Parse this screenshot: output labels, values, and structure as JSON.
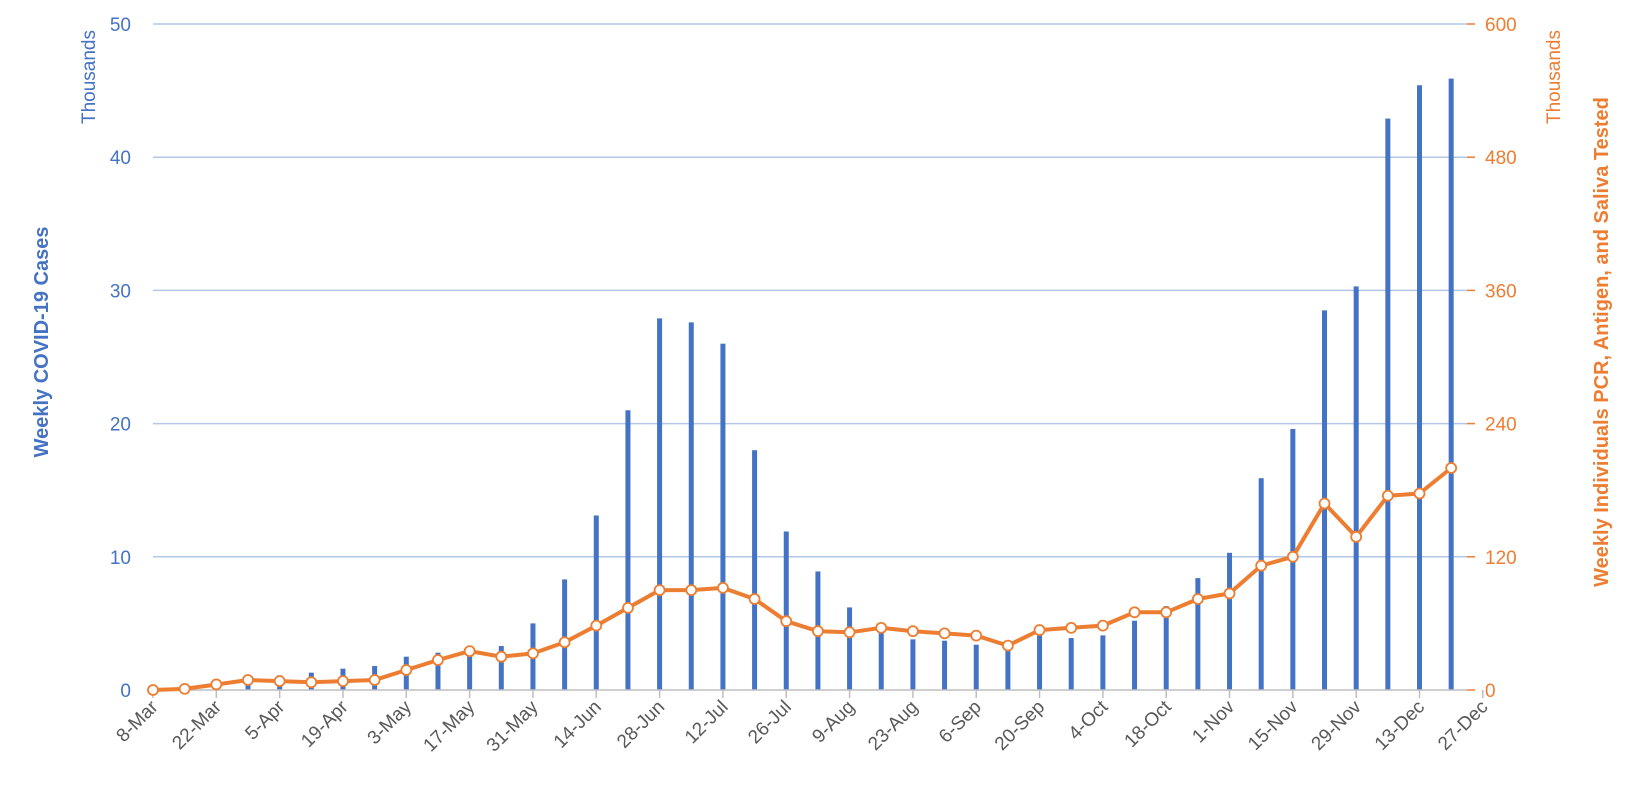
{
  "chart_data": {
    "type": "bar",
    "title": "",
    "grid": true,
    "legend": "none",
    "colors": {
      "cases": "#4472C4",
      "tests": "#ED7D31",
      "grid": "#B4C7E7"
    },
    "y_left": {
      "label": "Weekly COVID-19 Cases",
      "unit": "Thousands",
      "range": [
        0,
        50
      ],
      "ticks": [
        "0",
        "10",
        "20",
        "30",
        "40",
        "50"
      ]
    },
    "y_right": {
      "label": "Weekly Individuals PCR, Antigen, and Saliva Tested",
      "unit": "Thousands",
      "range": [
        0,
        600
      ],
      "ticks": [
        "0",
        "120",
        "240",
        "360",
        "480",
        "600"
      ]
    },
    "x_tick_labels": [
      "8-Mar",
      "22-Mar",
      "5-Apr",
      "19-Apr",
      "3-May",
      "17-May",
      "31-May",
      "14-Jun",
      "28-Jun",
      "12-Jul",
      "26-Jul",
      "9-Aug",
      "23-Aug",
      "6-Sep",
      "20-Sep",
      "4-Oct",
      "18-Oct",
      "1-Nov",
      "15-Nov",
      "29-Nov",
      "13-Dec",
      "27-Dec"
    ],
    "x": [
      "8-Mar",
      "15-Mar",
      "22-Mar",
      "29-Mar",
      "5-Apr",
      "12-Apr",
      "19-Apr",
      "26-Apr",
      "3-May",
      "10-May",
      "17-May",
      "24-May",
      "31-May",
      "7-Jun",
      "14-Jun",
      "21-Jun",
      "28-Jun",
      "5-Jul",
      "12-Jul",
      "19-Jul",
      "26-Jul",
      "2-Aug",
      "9-Aug",
      "16-Aug",
      "23-Aug",
      "30-Aug",
      "6-Sep",
      "13-Sep",
      "20-Sep",
      "27-Sep",
      "4-Oct",
      "11-Oct",
      "18-Oct",
      "25-Oct",
      "1-Nov",
      "8-Nov",
      "15-Nov",
      "22-Nov",
      "29-Nov",
      "6-Dec",
      "13-Dec",
      "20-Dec"
    ],
    "series": [
      {
        "axis": "left",
        "kind": "bar",
        "values": [
          0,
          0.1,
          0.4,
          1.0,
          1.1,
          1.3,
          1.6,
          1.8,
          2.5,
          2.8,
          3.0,
          3.3,
          5.0,
          8.3,
          13.1,
          21.0,
          27.9,
          27.6,
          26.0,
          18.0,
          11.9,
          8.9,
          6.2,
          4.8,
          3.8,
          3.7,
          3.4,
          3.5,
          4.3,
          3.9,
          4.1,
          5.2,
          6.3,
          8.4,
          10.3,
          15.9,
          19.6,
          28.5,
          30.3,
          42.9,
          45.4,
          45.9
        ]
      },
      {
        "axis": "right",
        "kind": "line",
        "values": [
          0,
          1,
          5,
          9,
          8,
          7,
          8,
          9,
          18,
          27,
          35,
          30,
          33,
          43,
          58,
          74,
          90,
          90,
          92,
          82,
          62,
          53,
          52,
          56,
          53,
          51,
          49,
          40,
          54,
          56,
          58,
          70,
          70,
          82,
          87,
          112,
          120,
          168,
          138,
          175,
          177,
          200
        ]
      }
    ]
  }
}
